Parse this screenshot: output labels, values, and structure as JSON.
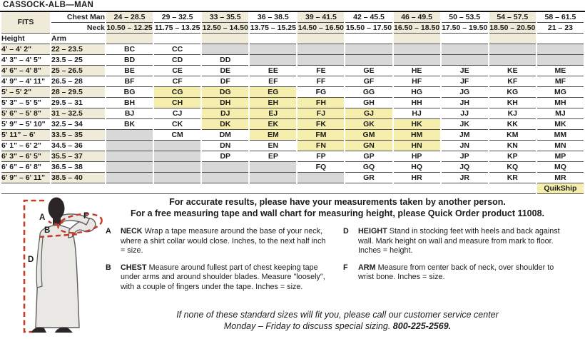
{
  "title": "CASSOCK-ALB—MAN",
  "colors": {
    "header_tan": "#f0ebd8",
    "quikship_yellow": "#f6eeac",
    "unavailable_gray": "#d8d8d8",
    "measure_line_red": "#c53d2a"
  },
  "table": {
    "fits_label": "FITS",
    "chest_label": "Chest Man",
    "neck_label": "Neck",
    "height_label": "Height",
    "arm_label": "Arm",
    "quikship_label": "QuikShip",
    "chest_ranges": [
      "24 – 28.5",
      "29 – 32.5",
      "33 – 35.5",
      "36 – 38.5",
      "39 – 41.5",
      "42 – 45.5",
      "46 – 49.5",
      "50 – 53.5",
      "54 – 57.5",
      "58 – 61.5"
    ],
    "neck_ranges": [
      "10.50 – 12.25",
      "11.75 – 13.25",
      "12.50 – 14.50",
      "13.75 – 15.25",
      "14.50 – 16.50",
      "15.50 – 17.50",
      "16.50 – 18.50",
      "17.50 – 19.50",
      "18.50 – 20.50",
      "21 – 23"
    ],
    "quikship_codes": [
      "CG",
      "DG",
      "EG",
      "CH",
      "DH",
      "EH",
      "FH",
      "DJ",
      "EJ",
      "FJ",
      "GJ",
      "DK",
      "EK",
      "FK",
      "GK",
      "HK",
      "EM",
      "FM",
      "GM",
      "HM",
      "FN",
      "GN",
      "HN"
    ],
    "rows": [
      {
        "height": "4' – 4' 2\"",
        "arm": "22 – 23.5",
        "codes": [
          "BC",
          "CC",
          "",
          "",
          "",
          "",
          "",
          "",
          "",
          ""
        ]
      },
      {
        "height": "4' 3\" – 4' 5\"",
        "arm": "23.5 – 25",
        "codes": [
          "BD",
          "CD",
          "DD",
          "",
          "",
          "",
          "",
          "",
          "",
          ""
        ]
      },
      {
        "height": "4' 6\" – 4' 8\"",
        "arm": "25 – 26.5",
        "codes": [
          "BE",
          "CE",
          "DE",
          "EE",
          "FE",
          "GE",
          "HE",
          "JE",
          "KE",
          "ME"
        ]
      },
      {
        "height": "4' 9\" – 4' 11\"",
        "arm": "26.5 – 28",
        "codes": [
          "BF",
          "CF",
          "DF",
          "EF",
          "FF",
          "GF",
          "HF",
          "JF",
          "KF",
          "MF"
        ]
      },
      {
        "height": "5' – 5' 2\"",
        "arm": "28 – 29.5",
        "codes": [
          "BG",
          "CG",
          "DG",
          "EG",
          "FG",
          "GG",
          "HG",
          "JG",
          "KG",
          "MG"
        ]
      },
      {
        "height": "5' 3\" – 5' 5\"",
        "arm": "29.5 – 31",
        "codes": [
          "BH",
          "CH",
          "DH",
          "EH",
          "FH",
          "GH",
          "HH",
          "JH",
          "KH",
          "MH"
        ]
      },
      {
        "height": "5' 6\" – 5' 8\"",
        "arm": "31 – 32.5",
        "codes": [
          "BJ",
          "CJ",
          "DJ",
          "EJ",
          "FJ",
          "GJ",
          "HJ",
          "JJ",
          "KJ",
          "MJ"
        ]
      },
      {
        "height": "5' 9\" – 5' 10\"",
        "arm": "32.5 – 34",
        "codes": [
          "BK",
          "CK",
          "DK",
          "EK",
          "FK",
          "GK",
          "HK",
          "JK",
          "KK",
          "MK"
        ]
      },
      {
        "height": "5' 11\" – 6'",
        "arm": "33.5 – 35",
        "codes": [
          "",
          "CM",
          "DM",
          "EM",
          "FM",
          "GM",
          "HM",
          "JM",
          "KM",
          "MM"
        ]
      },
      {
        "height": "6' 1\" – 6' 2\"",
        "arm": "34.5 – 36",
        "codes": [
          "",
          "",
          "DN",
          "EN",
          "FN",
          "GN",
          "HN",
          "JN",
          "KN",
          "MN"
        ]
      },
      {
        "height": "6' 3\" – 6' 5\"",
        "arm": "35.5 – 37",
        "codes": [
          "",
          "",
          "DP",
          "EP",
          "FP",
          "GP",
          "HP",
          "JP",
          "KP",
          "MP"
        ]
      },
      {
        "height": "6' 6\" – 6' 8\"",
        "arm": "36.5 – 38",
        "codes": [
          "",
          "",
          "",
          "",
          "FQ",
          "GQ",
          "HQ",
          "JQ",
          "KQ",
          "MQ"
        ]
      },
      {
        "height": "6' 9\" – 6' 11\"",
        "arm": "38.5 – 40",
        "codes": [
          "",
          "",
          "",
          "",
          "",
          "GR",
          "HR",
          "JR",
          "KR",
          "MR"
        ]
      }
    ]
  },
  "intro": {
    "line1": "For accurate results, please have your measurements taken by another person.",
    "line2": "For a free measuring tape and wall chart for measuring height, please Quick Order product 11008."
  },
  "instructions": [
    {
      "letter": "A",
      "term": "NECK",
      "text": "Wrap a tape measure around the base of your neck, where a shirt collar would close. Inches, to the next half inch = size."
    },
    {
      "letter": "B",
      "term": "CHEST",
      "text": "Measure around fullest part of chest keeping tape under arms and around shoulder blades. Measure \"loosely\", with a couple of fingers under the tape. Inches = size."
    },
    {
      "letter": "D",
      "term": "HEIGHT",
      "text": "Stand in stocking feet with heels and back against wall. Mark height on wall and measure from mark to floor. Inches = height."
    },
    {
      "letter": "F",
      "term": "ARM",
      "text": "Measure from center back of neck, over shoulder to wrist bone. Inches = size."
    }
  ],
  "figure": {
    "labels": {
      "a": "A",
      "b": "B",
      "d": "D",
      "f": "F"
    }
  },
  "note": {
    "line1": "If none of these standard sizes will fit you, please call our customer service center",
    "line2_prefix": "Monday – Friday to discuss special sizing. ",
    "phone": "800-225-2569."
  }
}
